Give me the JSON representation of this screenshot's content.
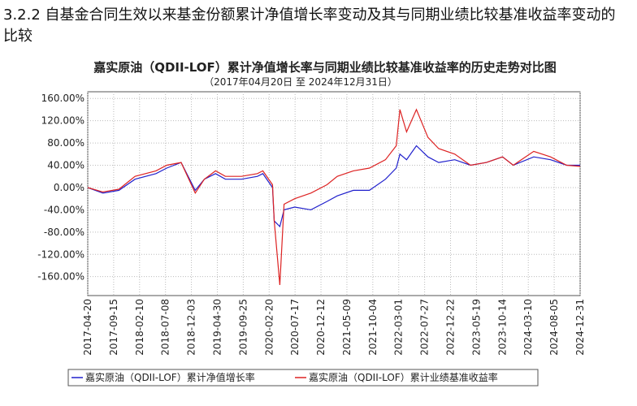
{
  "heading": "3.2.2 自基金合同生效以来基金份额累计净值增长率变动及其与同期业绩比较基准收益率变动的比较",
  "chart_data": {
    "type": "line",
    "title": "嘉实原油（QDII-LOF）累计净值增长率与同期业绩比较基准收益率的历史走势对比图",
    "subtitle": "（2017年04月20日 至 2024年12月31日）",
    "x": [
      "2017-04-20",
      "2017-07-15",
      "2017-10-15",
      "2018-01-15",
      "2018-05-15",
      "2018-07-15",
      "2018-10-05",
      "2018-12-25",
      "2019-02-15",
      "2019-04-20",
      "2019-06-15",
      "2019-09-15",
      "2019-12-15",
      "2020-01-15",
      "2020-03-10",
      "2020-03-20",
      "2020-04-21",
      "2020-05-15",
      "2020-07-15",
      "2020-10-15",
      "2021-01-15",
      "2021-03-15",
      "2021-06-15",
      "2021-09-15",
      "2021-12-15",
      "2022-02-15",
      "2022-03-08",
      "2022-04-15",
      "2022-06-10",
      "2022-08-15",
      "2022-10-15",
      "2023-01-15",
      "2023-04-15",
      "2023-07-15",
      "2023-10-15",
      "2023-12-15",
      "2024-04-10",
      "2024-07-15",
      "2024-10-15",
      "2024-12-31"
    ],
    "series": [
      {
        "name": "嘉实原油（QDII-LOF）累计净值增长率",
        "color": "#2020cc",
        "values": [
          0,
          -10,
          -5,
          15,
          25,
          35,
          45,
          -5,
          15,
          25,
          15,
          15,
          20,
          25,
          0,
          -60,
          -70,
          -40,
          -35,
          -40,
          -25,
          -15,
          -5,
          -5,
          15,
          35,
          60,
          50,
          75,
          55,
          45,
          50,
          40,
          45,
          55,
          40,
          55,
          50,
          40,
          40
        ]
      },
      {
        "name": "嘉实原油（QDII-LOF）累计业绩基准收益率",
        "color": "#dd2222",
        "values": [
          0,
          -8,
          -3,
          20,
          30,
          40,
          45,
          -10,
          15,
          30,
          20,
          20,
          25,
          30,
          5,
          -60,
          -175,
          -30,
          -20,
          -10,
          5,
          20,
          30,
          35,
          50,
          75,
          140,
          100,
          140,
          90,
          70,
          60,
          40,
          45,
          55,
          40,
          65,
          55,
          40,
          38
        ]
      }
    ],
    "xlim": [
      "2017-04-20",
      "2024-12-31"
    ],
    "xticks": [
      "2017-04-20",
      "2017-09-15",
      "2018-02-10",
      "2018-07-08",
      "2018-12-03",
      "2019-04-30",
      "2019-09-25",
      "2020-02-20",
      "2020-07-17",
      "2020-12-12",
      "2021-05-09",
      "2021-10-04",
      "2022-03-01",
      "2022-07-27",
      "2022-12-22",
      "2023-05-19",
      "2023-10-14",
      "2024-03-10",
      "2024-08-05",
      "2024-12-31"
    ],
    "ylim": [
      -194,
      172
    ],
    "yticks": [
      {
        "value": 160,
        "label": "160.00%"
      },
      {
        "value": 120,
        "label": "120.00%"
      },
      {
        "value": 80,
        "label": "80.00%"
      },
      {
        "value": 40,
        "label": "40.00%"
      },
      {
        "value": 0,
        "label": "0.00%"
      },
      {
        "value": -40,
        "label": "-40.00%"
      },
      {
        "value": -80,
        "label": "-80.00%"
      },
      {
        "value": -120,
        "label": "-120.00%"
      },
      {
        "value": -160,
        "label": "-160.00%"
      }
    ],
    "grid": true
  }
}
